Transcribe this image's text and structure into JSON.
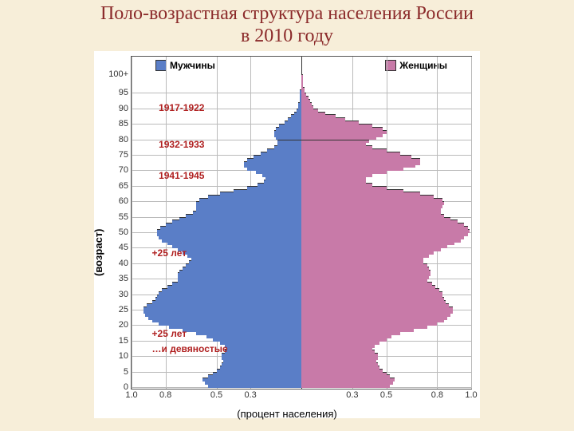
{
  "title_line1": "Поло-возрастная структура населения России",
  "title_line2": "в 2010 году",
  "title_color": "#8b2a2a",
  "title_fontsize": 24,
  "page_bg": "#f7eed9",
  "ylabel": "(возраст)",
  "xlabel": "(процент населения)",
  "axis_label_fontsize": 13,
  "legend": {
    "male": "Мужчины",
    "female": "Женщины",
    "male_color": "#5a7ec7",
    "female_color": "#c87aa8"
  },
  "chart": {
    "type": "population-pyramid",
    "bar_border": "#333",
    "grid_color": "#bbbbbb",
    "x_max": 1.0,
    "x_ticks_left": [
      1.0,
      0.8,
      0.5,
      0.3
    ],
    "x_ticks_right": [
      0.3,
      0.5,
      0.8,
      1.0
    ],
    "y_ticks": [
      0,
      5,
      10,
      15,
      20,
      25,
      30,
      35,
      40,
      45,
      50,
      55,
      60,
      65,
      70,
      75,
      80,
      85,
      90,
      95
    ],
    "y_top_label": "100+",
    "bars": [
      {
        "age": 0,
        "m": 0.55,
        "f": 0.52
      },
      {
        "age": 1,
        "m": 0.57,
        "f": 0.54
      },
      {
        "age": 2,
        "m": 0.58,
        "f": 0.55
      },
      {
        "age": 3,
        "m": 0.55,
        "f": 0.52
      },
      {
        "age": 4,
        "m": 0.52,
        "f": 0.5
      },
      {
        "age": 5,
        "m": 0.5,
        "f": 0.48
      },
      {
        "age": 6,
        "m": 0.48,
        "f": 0.46
      },
      {
        "age": 7,
        "m": 0.47,
        "f": 0.45
      },
      {
        "age": 8,
        "m": 0.46,
        "f": 0.44
      },
      {
        "age": 9,
        "m": 0.47,
        "f": 0.45
      },
      {
        "age": 10,
        "m": 0.47,
        "f": 0.45
      },
      {
        "age": 11,
        "m": 0.45,
        "f": 0.43
      },
      {
        "age": 12,
        "m": 0.44,
        "f": 0.42
      },
      {
        "age": 13,
        "m": 0.45,
        "f": 0.43
      },
      {
        "age": 14,
        "m": 0.48,
        "f": 0.46
      },
      {
        "age": 15,
        "m": 0.52,
        "f": 0.5
      },
      {
        "age": 16,
        "m": 0.56,
        "f": 0.53
      },
      {
        "age": 17,
        "m": 0.62,
        "f": 0.58
      },
      {
        "age": 18,
        "m": 0.7,
        "f": 0.66
      },
      {
        "age": 19,
        "m": 0.78,
        "f": 0.74
      },
      {
        "age": 20,
        "m": 0.84,
        "f": 0.8
      },
      {
        "age": 21,
        "m": 0.88,
        "f": 0.84
      },
      {
        "age": 22,
        "m": 0.9,
        "f": 0.86
      },
      {
        "age": 23,
        "m": 0.92,
        "f": 0.88
      },
      {
        "age": 24,
        "m": 0.93,
        "f": 0.89
      },
      {
        "age": 25,
        "m": 0.93,
        "f": 0.89
      },
      {
        "age": 26,
        "m": 0.91,
        "f": 0.87
      },
      {
        "age": 27,
        "m": 0.88,
        "f": 0.85
      },
      {
        "age": 28,
        "m": 0.86,
        "f": 0.84
      },
      {
        "age": 29,
        "m": 0.85,
        "f": 0.83
      },
      {
        "age": 30,
        "m": 0.84,
        "f": 0.83
      },
      {
        "age": 31,
        "m": 0.82,
        "f": 0.81
      },
      {
        "age": 32,
        "m": 0.79,
        "f": 0.79
      },
      {
        "age": 33,
        "m": 0.76,
        "f": 0.77
      },
      {
        "age": 34,
        "m": 0.73,
        "f": 0.74
      },
      {
        "age": 35,
        "m": 0.73,
        "f": 0.75
      },
      {
        "age": 36,
        "m": 0.73,
        "f": 0.76
      },
      {
        "age": 37,
        "m": 0.72,
        "f": 0.76
      },
      {
        "age": 38,
        "m": 0.7,
        "f": 0.75
      },
      {
        "age": 39,
        "m": 0.68,
        "f": 0.74
      },
      {
        "age": 40,
        "m": 0.66,
        "f": 0.72
      },
      {
        "age": 41,
        "m": 0.65,
        "f": 0.72
      },
      {
        "age": 42,
        "m": 0.67,
        "f": 0.75
      },
      {
        "age": 43,
        "m": 0.7,
        "f": 0.78
      },
      {
        "age": 44,
        "m": 0.73,
        "f": 0.82
      },
      {
        "age": 45,
        "m": 0.76,
        "f": 0.86
      },
      {
        "age": 46,
        "m": 0.79,
        "f": 0.9
      },
      {
        "age": 47,
        "m": 0.82,
        "f": 0.94
      },
      {
        "age": 48,
        "m": 0.84,
        "f": 0.96
      },
      {
        "age": 49,
        "m": 0.85,
        "f": 0.98
      },
      {
        "age": 50,
        "m": 0.85,
        "f": 0.99
      },
      {
        "age": 51,
        "m": 0.83,
        "f": 0.98
      },
      {
        "age": 52,
        "m": 0.8,
        "f": 0.96
      },
      {
        "age": 53,
        "m": 0.76,
        "f": 0.92
      },
      {
        "age": 54,
        "m": 0.72,
        "f": 0.88
      },
      {
        "age": 55,
        "m": 0.68,
        "f": 0.84
      },
      {
        "age": 56,
        "m": 0.64,
        "f": 0.82
      },
      {
        "age": 57,
        "m": 0.62,
        "f": 0.82
      },
      {
        "age": 58,
        "m": 0.62,
        "f": 0.83
      },
      {
        "age": 59,
        "m": 0.62,
        "f": 0.84
      },
      {
        "age": 60,
        "m": 0.6,
        "f": 0.83
      },
      {
        "age": 61,
        "m": 0.55,
        "f": 0.78
      },
      {
        "age": 62,
        "m": 0.48,
        "f": 0.7
      },
      {
        "age": 63,
        "m": 0.4,
        "f": 0.6
      },
      {
        "age": 64,
        "m": 0.32,
        "f": 0.5
      },
      {
        "age": 65,
        "m": 0.26,
        "f": 0.42
      },
      {
        "age": 66,
        "m": 0.22,
        "f": 0.38
      },
      {
        "age": 67,
        "m": 0.21,
        "f": 0.38
      },
      {
        "age": 68,
        "m": 0.23,
        "f": 0.42
      },
      {
        "age": 69,
        "m": 0.27,
        "f": 0.5
      },
      {
        "age": 70,
        "m": 0.32,
        "f": 0.6
      },
      {
        "age": 71,
        "m": 0.34,
        "f": 0.67
      },
      {
        "age": 72,
        "m": 0.34,
        "f": 0.7
      },
      {
        "age": 73,
        "m": 0.32,
        "f": 0.7
      },
      {
        "age": 74,
        "m": 0.28,
        "f": 0.65
      },
      {
        "age": 75,
        "m": 0.24,
        "f": 0.58
      },
      {
        "age": 76,
        "m": 0.2,
        "f": 0.5
      },
      {
        "age": 77,
        "m": 0.16,
        "f": 0.42
      },
      {
        "age": 78,
        "m": 0.14,
        "f": 0.38
      },
      {
        "age": 79,
        "m": 0.14,
        "f": 0.4
      },
      {
        "age": 80,
        "m": 0.15,
        "f": 0.44
      },
      {
        "age": 81,
        "m": 0.16,
        "f": 0.48
      },
      {
        "age": 82,
        "m": 0.16,
        "f": 0.5
      },
      {
        "age": 83,
        "m": 0.15,
        "f": 0.48
      },
      {
        "age": 84,
        "m": 0.13,
        "f": 0.42
      },
      {
        "age": 85,
        "m": 0.1,
        "f": 0.34
      },
      {
        "age": 86,
        "m": 0.08,
        "f": 0.26
      },
      {
        "age": 87,
        "m": 0.06,
        "f": 0.2
      },
      {
        "age": 88,
        "m": 0.04,
        "f": 0.14
      },
      {
        "age": 89,
        "m": 0.03,
        "f": 0.1
      },
      {
        "age": 90,
        "m": 0.02,
        "f": 0.07
      },
      {
        "age": 91,
        "m": 0.02,
        "f": 0.06
      },
      {
        "age": 92,
        "m": 0.01,
        "f": 0.05
      },
      {
        "age": 93,
        "m": 0.01,
        "f": 0.04
      },
      {
        "age": 94,
        "m": 0.01,
        "f": 0.03
      },
      {
        "age": 95,
        "m": 0.01,
        "f": 0.02
      },
      {
        "age": 96,
        "m": 0.0,
        "f": 0.02
      },
      {
        "age": 97,
        "m": 0.0,
        "f": 0.01
      },
      {
        "age": 98,
        "m": 0.0,
        "f": 0.01
      },
      {
        "age": 99,
        "m": 0.0,
        "f": 0.01
      },
      {
        "age": 100,
        "m": 0.0,
        "f": 0.01
      }
    ]
  },
  "annotations": [
    {
      "text": "1917-1922",
      "age": 90,
      "color": "#b02020",
      "x": 0.08
    },
    {
      "text": "1932-1933",
      "age": 78,
      "color": "#b02020",
      "x": 0.08
    },
    {
      "text": "1941-1945",
      "age": 68,
      "color": "#b02020",
      "x": 0.08
    },
    {
      "text": "+25 лет",
      "age": 43,
      "color": "#b02020",
      "x": 0.06
    },
    {
      "text": "+25 лет",
      "age": 17,
      "color": "#b02020",
      "x": 0.06
    },
    {
      "text": "…и девяностые",
      "age": 12,
      "color": "#b02020",
      "x": 0.06
    }
  ]
}
